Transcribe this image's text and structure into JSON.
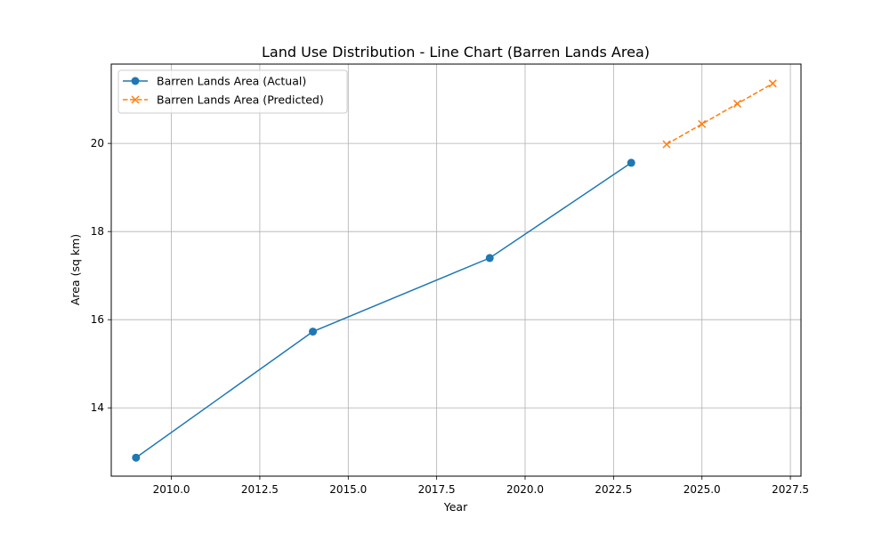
{
  "chart_data": {
    "type": "line",
    "title": "Land Use Distribution - Line Chart (Barren Lands Area)",
    "xlabel": "Year",
    "ylabel": "Area (sq km)",
    "xlim": [
      2008.3,
      2027.8
    ],
    "ylim": [
      12.45,
      21.8
    ],
    "xticks": [
      2010.0,
      2012.5,
      2015.0,
      2017.5,
      2020.0,
      2022.5,
      2025.0,
      2027.5
    ],
    "xtick_labels": [
      "2010.0",
      "2012.5",
      "2015.0",
      "2017.5",
      "2020.0",
      "2022.5",
      "2025.0",
      "2027.5"
    ],
    "yticks": [
      14,
      16,
      18,
      20
    ],
    "ytick_labels": [
      "14",
      "16",
      "18",
      "20"
    ],
    "grid": true,
    "legend_position": "top-left",
    "series": [
      {
        "name": "Barren Lands Area (Actual)",
        "color": "#1f77b4",
        "style": "solid",
        "marker": "circle",
        "x": [
          2009,
          2014,
          2019,
          2023
        ],
        "y": [
          12.87,
          15.73,
          17.4,
          19.56
        ]
      },
      {
        "name": "Barren Lands Area (Predicted)",
        "color": "#ff7f0e",
        "style": "dashed",
        "marker": "x",
        "x": [
          2024,
          2025,
          2026,
          2027
        ],
        "y": [
          19.98,
          20.44,
          20.9,
          21.36
        ]
      }
    ]
  }
}
